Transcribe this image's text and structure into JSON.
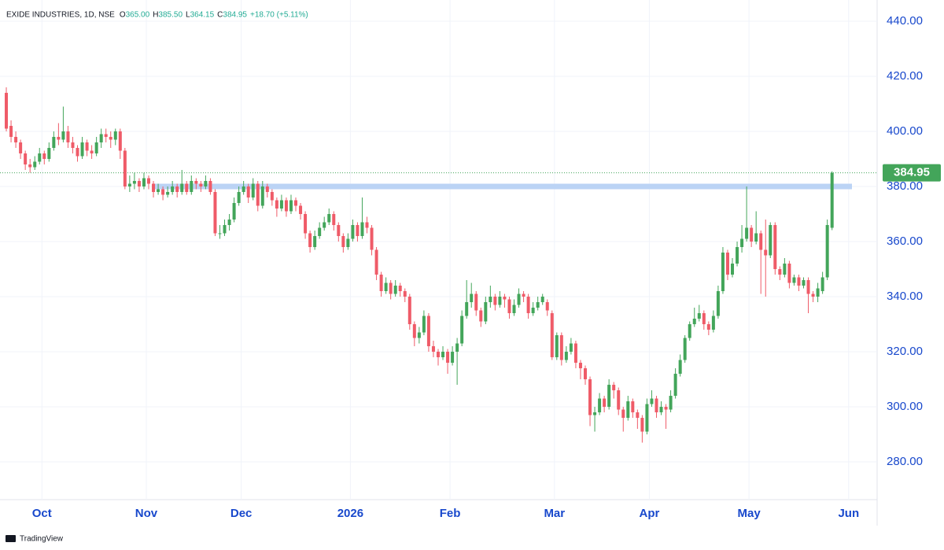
{
  "chart_data": {
    "type": "candlestick",
    "header": {
      "symbol": "EXIDE INDUSTRIES, 1D, NSE",
      "fields": [
        {
          "key": "O",
          "value": "365.00"
        },
        {
          "key": "H",
          "value": "385.50"
        },
        {
          "key": "L",
          "value": "364.15"
        },
        {
          "key": "C",
          "value": "384.95"
        }
      ],
      "change": "+18.70 (+5.11%)"
    },
    "up_color": "#43a55a",
    "down_color": "#ef5b68",
    "ohlc": [
      [
        414,
        416,
        400,
        401
      ],
      [
        402,
        404,
        396,
        398
      ],
      [
        398,
        400,
        394,
        396
      ],
      [
        396,
        397,
        390,
        392
      ],
      [
        392,
        393,
        386,
        388
      ],
      [
        388,
        390,
        385,
        387
      ],
      [
        387,
        391,
        386,
        389
      ],
      [
        389,
        394,
        388,
        392
      ],
      [
        392,
        393,
        388,
        390
      ],
      [
        390,
        396,
        389,
        394
      ],
      [
        394,
        400,
        393,
        398
      ],
      [
        398,
        403,
        395,
        397
      ],
      [
        397,
        409,
        396,
        400
      ],
      [
        400,
        402,
        394,
        396
      ],
      [
        396,
        398,
        392,
        394
      ],
      [
        394,
        395,
        389,
        391
      ],
      [
        391,
        398,
        390,
        396
      ],
      [
        396,
        397,
        391,
        393
      ],
      [
        393,
        395,
        390,
        392
      ],
      [
        392,
        398,
        391,
        396
      ],
      [
        396,
        401,
        394,
        399
      ],
      [
        399,
        401,
        396,
        398
      ],
      [
        398,
        400,
        394,
        397
      ],
      [
        397,
        401,
        395,
        400
      ],
      [
        400,
        401,
        390,
        393
      ],
      [
        393,
        394,
        379,
        380
      ],
      [
        380,
        384,
        378,
        381
      ],
      [
        381,
        385,
        379,
        382
      ],
      [
        382,
        383,
        378,
        380
      ],
      [
        380,
        385,
        379,
        383
      ],
      [
        383,
        384,
        379,
        381
      ],
      [
        381,
        382,
        376,
        378
      ],
      [
        378,
        381,
        377,
        379
      ],
      [
        379,
        380,
        375,
        377
      ],
      [
        377,
        380,
        376,
        378
      ],
      [
        378,
        382,
        377,
        380
      ],
      [
        380,
        381,
        376,
        378
      ],
      [
        378,
        386,
        377,
        381
      ],
      [
        381,
        382,
        377,
        378
      ],
      [
        378,
        384,
        377,
        382
      ],
      [
        382,
        383,
        379,
        381
      ],
      [
        381,
        382,
        378,
        380
      ],
      [
        380,
        384,
        379,
        382
      ],
      [
        382,
        383,
        377,
        378
      ],
      [
        378,
        379,
        362,
        363
      ],
      [
        363,
        366,
        361,
        363
      ],
      [
        363,
        368,
        362,
        366
      ],
      [
        366,
        370,
        364,
        368
      ],
      [
        368,
        376,
        367,
        374
      ],
      [
        374,
        380,
        373,
        378
      ],
      [
        378,
        382,
        377,
        380
      ],
      [
        380,
        381,
        374,
        376
      ],
      [
        376,
        383,
        375,
        381
      ],
      [
        381,
        382,
        371,
        373
      ],
      [
        373,
        382,
        372,
        380
      ],
      [
        380,
        381,
        376,
        378
      ],
      [
        378,
        379,
        373,
        375
      ],
      [
        375,
        376,
        369,
        372
      ],
      [
        372,
        377,
        371,
        375
      ],
      [
        375,
        376,
        369,
        371
      ],
      [
        371,
        377,
        370,
        375
      ],
      [
        375,
        376,
        371,
        373
      ],
      [
        373,
        374,
        368,
        370
      ],
      [
        370,
        371,
        361,
        363
      ],
      [
        363,
        364,
        356,
        358
      ],
      [
        358,
        364,
        357,
        362
      ],
      [
        362,
        367,
        361,
        365
      ],
      [
        365,
        369,
        364,
        367
      ],
      [
        367,
        372,
        366,
        370
      ],
      [
        370,
        371,
        364,
        366
      ],
      [
        366,
        367,
        360,
        362
      ],
      [
        362,
        363,
        356,
        358
      ],
      [
        358,
        363,
        357,
        361
      ],
      [
        361,
        368,
        360,
        366
      ],
      [
        366,
        367,
        360,
        362
      ],
      [
        362,
        376,
        361,
        367
      ],
      [
        367,
        369,
        363,
        365
      ],
      [
        365,
        366,
        355,
        357
      ],
      [
        357,
        358,
        346,
        348
      ],
      [
        348,
        349,
        340,
        342
      ],
      [
        342,
        347,
        341,
        345
      ],
      [
        345,
        346,
        339,
        341
      ],
      [
        341,
        346,
        340,
        344
      ],
      [
        344,
        345,
        340,
        342
      ],
      [
        342,
        343,
        338,
        340
      ],
      [
        340,
        341,
        328,
        330
      ],
      [
        330,
        331,
        322,
        325
      ],
      [
        325,
        329,
        323,
        327
      ],
      [
        327,
        335,
        326,
        333
      ],
      [
        333,
        334,
        320,
        322
      ],
      [
        322,
        324,
        318,
        320
      ],
      [
        320,
        321,
        315,
        318
      ],
      [
        318,
        322,
        317,
        320
      ],
      [
        320,
        321,
        312,
        316
      ],
      [
        316,
        322,
        315,
        320
      ],
      [
        320,
        325,
        308,
        323
      ],
      [
        323,
        335,
        322,
        333
      ],
      [
        333,
        346,
        332,
        338
      ],
      [
        338,
        345,
        336,
        341
      ],
      [
        341,
        342,
        333,
        335
      ],
      [
        335,
        336,
        329,
        331
      ],
      [
        331,
        340,
        330,
        338
      ],
      [
        338,
        344,
        336,
        340
      ],
      [
        340,
        341,
        335,
        337
      ],
      [
        337,
        342,
        336,
        340
      ],
      [
        340,
        341,
        336,
        339
      ],
      [
        339,
        340,
        332,
        334
      ],
      [
        334,
        339,
        333,
        337
      ],
      [
        337,
        343,
        336,
        341
      ],
      [
        341,
        342,
        338,
        340
      ],
      [
        340,
        341,
        332,
        334
      ],
      [
        334,
        338,
        333,
        336
      ],
      [
        336,
        340,
        335,
        338
      ],
      [
        338,
        341,
        337,
        340
      ],
      [
        338,
        339,
        333,
        335
      ],
      [
        334,
        335,
        317,
        318
      ],
      [
        318,
        327,
        317,
        326
      ],
      [
        326,
        327,
        315,
        317
      ],
      [
        317,
        322,
        316,
        320
      ],
      [
        320,
        325,
        319,
        323
      ],
      [
        323,
        324,
        314,
        316
      ],
      [
        316,
        317,
        310,
        314
      ],
      [
        314,
        315,
        308,
        310
      ],
      [
        310,
        311,
        293,
        297
      ],
      [
        297,
        300,
        291,
        298
      ],
      [
        298,
        305,
        297,
        303
      ],
      [
        303,
        304,
        298,
        300
      ],
      [
        300,
        310,
        299,
        308
      ],
      [
        308,
        309,
        303,
        306
      ],
      [
        306,
        307,
        297,
        299
      ],
      [
        299,
        300,
        291,
        296
      ],
      [
        296,
        304,
        295,
        302
      ],
      [
        302,
        303,
        296,
        298
      ],
      [
        298,
        299,
        292,
        296
      ],
      [
        296,
        297,
        287,
        291
      ],
      [
        291,
        303,
        290,
        301
      ],
      [
        301,
        306,
        300,
        303
      ],
      [
        303,
        304,
        296,
        298
      ],
      [
        298,
        302,
        297,
        300
      ],
      [
        300,
        301,
        292,
        299
      ],
      [
        299,
        306,
        298,
        304
      ],
      [
        304,
        314,
        303,
        312
      ],
      [
        312,
        319,
        311,
        317
      ],
      [
        317,
        326,
        316,
        325
      ],
      [
        325,
        331,
        324,
        330
      ],
      [
        330,
        336,
        329,
        332
      ],
      [
        332,
        337,
        331,
        334
      ],
      [
        334,
        335,
        328,
        330
      ],
      [
        330,
        331,
        326,
        328
      ],
      [
        328,
        335,
        327,
        333
      ],
      [
        333,
        344,
        332,
        342
      ],
      [
        342,
        358,
        341,
        356
      ],
      [
        356,
        357,
        346,
        348
      ],
      [
        348,
        354,
        347,
        352
      ],
      [
        352,
        360,
        351,
        358
      ],
      [
        358,
        366,
        356,
        361
      ],
      [
        361,
        380,
        360,
        365
      ],
      [
        365,
        366,
        358,
        360
      ],
      [
        360,
        371,
        359,
        363
      ],
      [
        363,
        364,
        341,
        357
      ],
      [
        357,
        368,
        340,
        355
      ],
      [
        355,
        367,
        354,
        366
      ],
      [
        366,
        367,
        348,
        350
      ],
      [
        350,
        351,
        346,
        348
      ],
      [
        348,
        354,
        347,
        352
      ],
      [
        352,
        353,
        343,
        345
      ],
      [
        345,
        348,
        344,
        347
      ],
      [
        347,
        348,
        342,
        344
      ],
      [
        344,
        347,
        343,
        346
      ],
      [
        346,
        347,
        334,
        341
      ],
      [
        341,
        342,
        338,
        340
      ],
      [
        340,
        345,
        338,
        343
      ],
      [
        342,
        349,
        341,
        347
      ],
      [
        347,
        368,
        346,
        366
      ],
      [
        365,
        385.5,
        364.15,
        384.95
      ]
    ],
    "zone": [
      379,
      381
    ],
    "zone_color": "#bbd3f5",
    "last_price": {
      "value": 384.95,
      "label": "384.95"
    },
    "ylim": [
      266.3,
      447.7
    ],
    "yticks": [
      {
        "value": 280,
        "label": "280.00"
      },
      {
        "value": 300,
        "label": "300.00"
      },
      {
        "value": 320,
        "label": "320.00"
      },
      {
        "value": 340,
        "label": "340.00"
      },
      {
        "value": 360,
        "label": "360.00"
      },
      {
        "value": 380,
        "label": "380.00"
      },
      {
        "value": 400,
        "label": "400.00"
      },
      {
        "value": 420,
        "label": "420.00"
      },
      {
        "value": 440,
        "label": "440.00"
      }
    ],
    "xlim": [
      -1.33,
      183.5
    ],
    "xticks": [
      {
        "value": 7.5,
        "label": "Oct"
      },
      {
        "value": 29.5,
        "label": "Nov"
      },
      {
        "value": 49.5,
        "label": "Dec"
      },
      {
        "value": 72.5,
        "label": "2026"
      },
      {
        "value": 93.5,
        "label": "Feb"
      },
      {
        "value": 115.5,
        "label": "Mar"
      },
      {
        "value": 135.5,
        "label": "Apr"
      },
      {
        "value": 156.5,
        "label": "May"
      },
      {
        "value": 177.5,
        "label": "Jun"
      }
    ],
    "grid": true,
    "brand": "TradingView"
  }
}
